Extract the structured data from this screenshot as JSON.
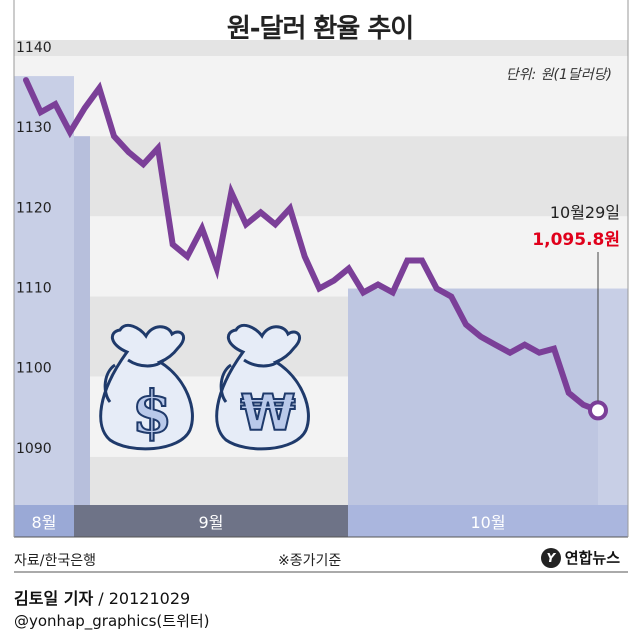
{
  "title": "원-달러 환율 추이",
  "unit_label": "단위: 원(1달러당)",
  "source": "자료/한국은행",
  "note": "※종가기준",
  "brand": "연합뉴스",
  "byline_name": "김토일 기자",
  "byline_date": " / 20121029",
  "handle": "@yonhap_graphics(트위터)",
  "colors": {
    "line": "#7b3f98",
    "band_dark": "#e4e4e4",
    "band_light": "#f3f3f3",
    "shade": "#c8cfe6",
    "shade_dark": "#b7bfdc",
    "month_aug": "#9aa9d6",
    "month_sep": "#6e7387",
    "month_oct": "#aab6de",
    "last_value": "#e0001b"
  },
  "chart_data": {
    "type": "line",
    "title": "원-달러 환율 추이",
    "ylabel": "단위: 원(1달러당)",
    "ylim": [
      1084,
      1142
    ],
    "yticks": [
      1140,
      1130,
      1120,
      1110,
      1100,
      1090
    ],
    "grid": true,
    "months": [
      {
        "label": "8월",
        "start": 0,
        "end": 1
      },
      {
        "label": "9월",
        "start": 1,
        "end": 13
      },
      {
        "label": "10월",
        "start": 13,
        "end": 23
      }
    ],
    "series": [
      {
        "values": [
          1137,
          1133,
          1134,
          1130.5,
          1133.5,
          1136,
          1130,
          1128,
          1126.5,
          1128.5,
          1116.5,
          1115,
          1118.5,
          1113.5,
          1123,
          1119,
          1120.5,
          1119,
          1121,
          1115,
          1111,
          1112,
          1113.5,
          1110.5,
          1111.5,
          1110.5,
          1114.5,
          1114.5,
          1111,
          1110,
          1106.5,
          1105,
          1104,
          1103,
          1104,
          1103,
          1103.5,
          1098,
          1096.5,
          1095.8
        ]
      }
    ],
    "annotation": {
      "date": "10월29일",
      "value": "1,095.8원"
    }
  }
}
